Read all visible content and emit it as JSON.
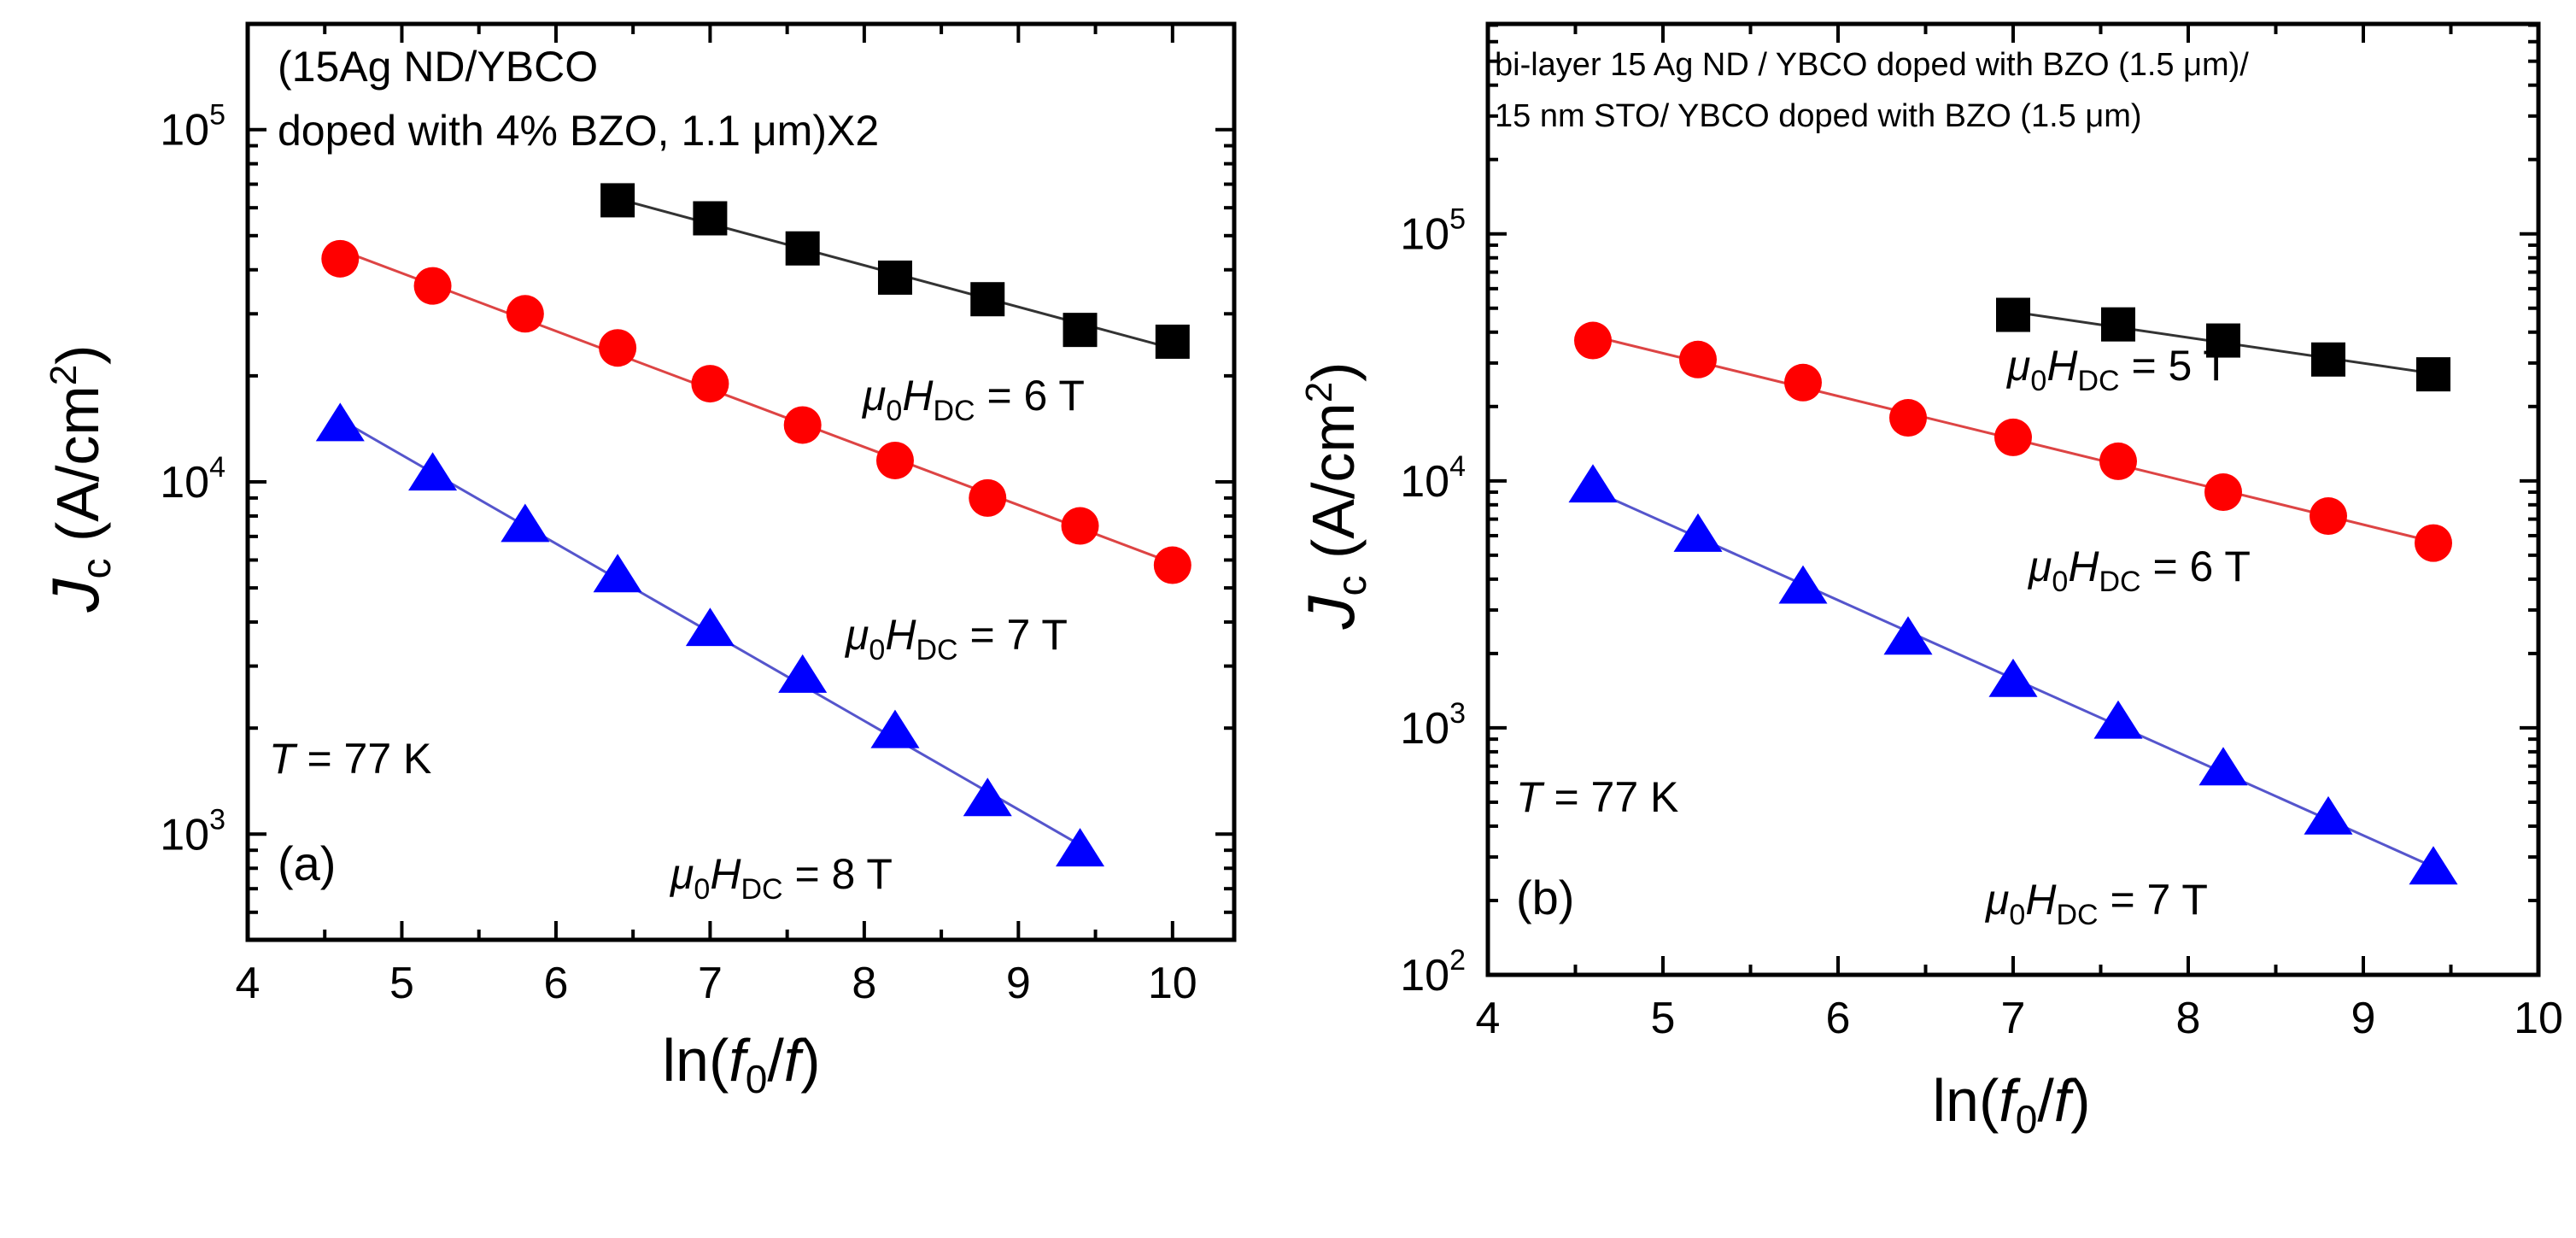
{
  "colors": {
    "black_series": "#000000",
    "red_series": "#ff0000",
    "blue_series": "#0000ff",
    "fit_black": "#333333",
    "fit_red": "#dd4444",
    "fit_blue": "#5555cc"
  },
  "chart_data": [
    {
      "type": "scatter",
      "panel": "(a)",
      "title": "",
      "annotation_lines": [
        "(15Ag ND/YBCO",
        "doped with 4% BZO, 1.1 μm)X2"
      ],
      "temperature": {
        "symbol": "T",
        "text": " = 77 K"
      },
      "xlabel": "ln(f0/f)",
      "ylabel": "Jc (A/cm2)",
      "xlim": [
        4,
        10.4
      ],
      "ylim_log10": [
        2.7,
        5.3
      ],
      "yscale": "log",
      "xticks": [
        {
          "value": 4,
          "label": "4"
        },
        {
          "value": 5,
          "label": "5"
        },
        {
          "value": 6,
          "label": "6"
        },
        {
          "value": 7,
          "label": "7"
        },
        {
          "value": 8,
          "label": "8"
        },
        {
          "value": 9,
          "label": "9"
        },
        {
          "value": 10,
          "label": "10"
        }
      ],
      "yticks": [
        {
          "exp": 3,
          "base": "10",
          "sup": "3"
        },
        {
          "exp": 4,
          "base": "10",
          "sup": "4"
        },
        {
          "exp": 5,
          "base": "10",
          "sup": "5"
        }
      ],
      "series": [
        {
          "name": "μ0HDC = 6 T",
          "field": "6 T",
          "marker": "square",
          "color": "#000000",
          "x": [
            6.4,
            7.0,
            7.6,
            8.2,
            8.8,
            9.4,
            10.0
          ],
          "y": [
            63000,
            56000,
            46000,
            38000,
            33000,
            27000,
            25000
          ]
        },
        {
          "name": "μ0HDC = 7 T",
          "field": "7 T",
          "marker": "circle",
          "color": "#ff0000",
          "x": [
            4.6,
            5.2,
            5.8,
            6.4,
            7.0,
            7.6,
            8.2,
            8.8,
            9.4,
            10.0
          ],
          "y": [
            43000,
            36000,
            30000,
            24000,
            19000,
            14500,
            11500,
            9000,
            7500,
            5800
          ]
        },
        {
          "name": "μ0HDC = 8 T",
          "field": "8 T",
          "marker": "triangle",
          "color": "#0000ff",
          "x": [
            4.6,
            5.2,
            5.8,
            6.4,
            7.0,
            7.6,
            8.2,
            8.8,
            9.4
          ],
          "y": [
            14500,
            10500,
            7500,
            5400,
            3800,
            2800,
            1950,
            1250,
            900
          ]
        }
      ]
    },
    {
      "type": "scatter",
      "panel": "(b)",
      "title": "",
      "annotation_lines": [
        "bi-layer 15 Ag ND / YBCO doped with BZO (1.5 μm)/",
        "15 nm STO/ YBCO doped with BZO (1.5 μm)"
      ],
      "temperature": {
        "symbol": "T",
        "text": " = 77 K"
      },
      "xlabel": "ln(f0/f)",
      "ylabel": "Jc (A/cm2)",
      "xlim": [
        4,
        10
      ],
      "ylim_log10": [
        2,
        5.85
      ],
      "yscale": "log",
      "xticks": [
        {
          "value": 4,
          "label": "4"
        },
        {
          "value": 5,
          "label": "5"
        },
        {
          "value": 6,
          "label": "6"
        },
        {
          "value": 7,
          "label": "7"
        },
        {
          "value": 8,
          "label": "8"
        },
        {
          "value": 9,
          "label": "9"
        },
        {
          "value": 10,
          "label": "10"
        }
      ],
      "yticks": [
        {
          "exp": 2,
          "base": "10",
          "sup": "2"
        },
        {
          "exp": 3,
          "base": "10",
          "sup": "3"
        },
        {
          "exp": 4,
          "base": "10",
          "sup": "4"
        },
        {
          "exp": 5,
          "base": "10",
          "sup": "5"
        }
      ],
      "series": [
        {
          "name": "μ0HDC = 5 T",
          "field": "5 T",
          "marker": "square",
          "color": "#000000",
          "x": [
            7.0,
            7.6,
            8.2,
            8.8,
            9.4
          ],
          "y": [
            47000,
            43000,
            37000,
            31000,
            27000
          ]
        },
        {
          "name": "μ0HDC = 6 T",
          "field": "6 T",
          "marker": "circle",
          "color": "#ff0000",
          "x": [
            4.6,
            5.2,
            5.8,
            6.4,
            7.0,
            7.6,
            8.2,
            8.8,
            9.4
          ],
          "y": [
            37000,
            31000,
            25000,
            18000,
            15000,
            12000,
            9000,
            7200,
            5600
          ]
        },
        {
          "name": "μ0HDC = 7 T",
          "field": "7 T",
          "marker": "triangle",
          "color": "#0000ff",
          "x": [
            4.6,
            5.2,
            5.8,
            6.4,
            7.0,
            7.6,
            8.2,
            8.8,
            9.4
          ],
          "y": [
            9500,
            6000,
            3700,
            2300,
            1550,
            1050,
            680,
            430,
            270
          ]
        }
      ]
    }
  ]
}
